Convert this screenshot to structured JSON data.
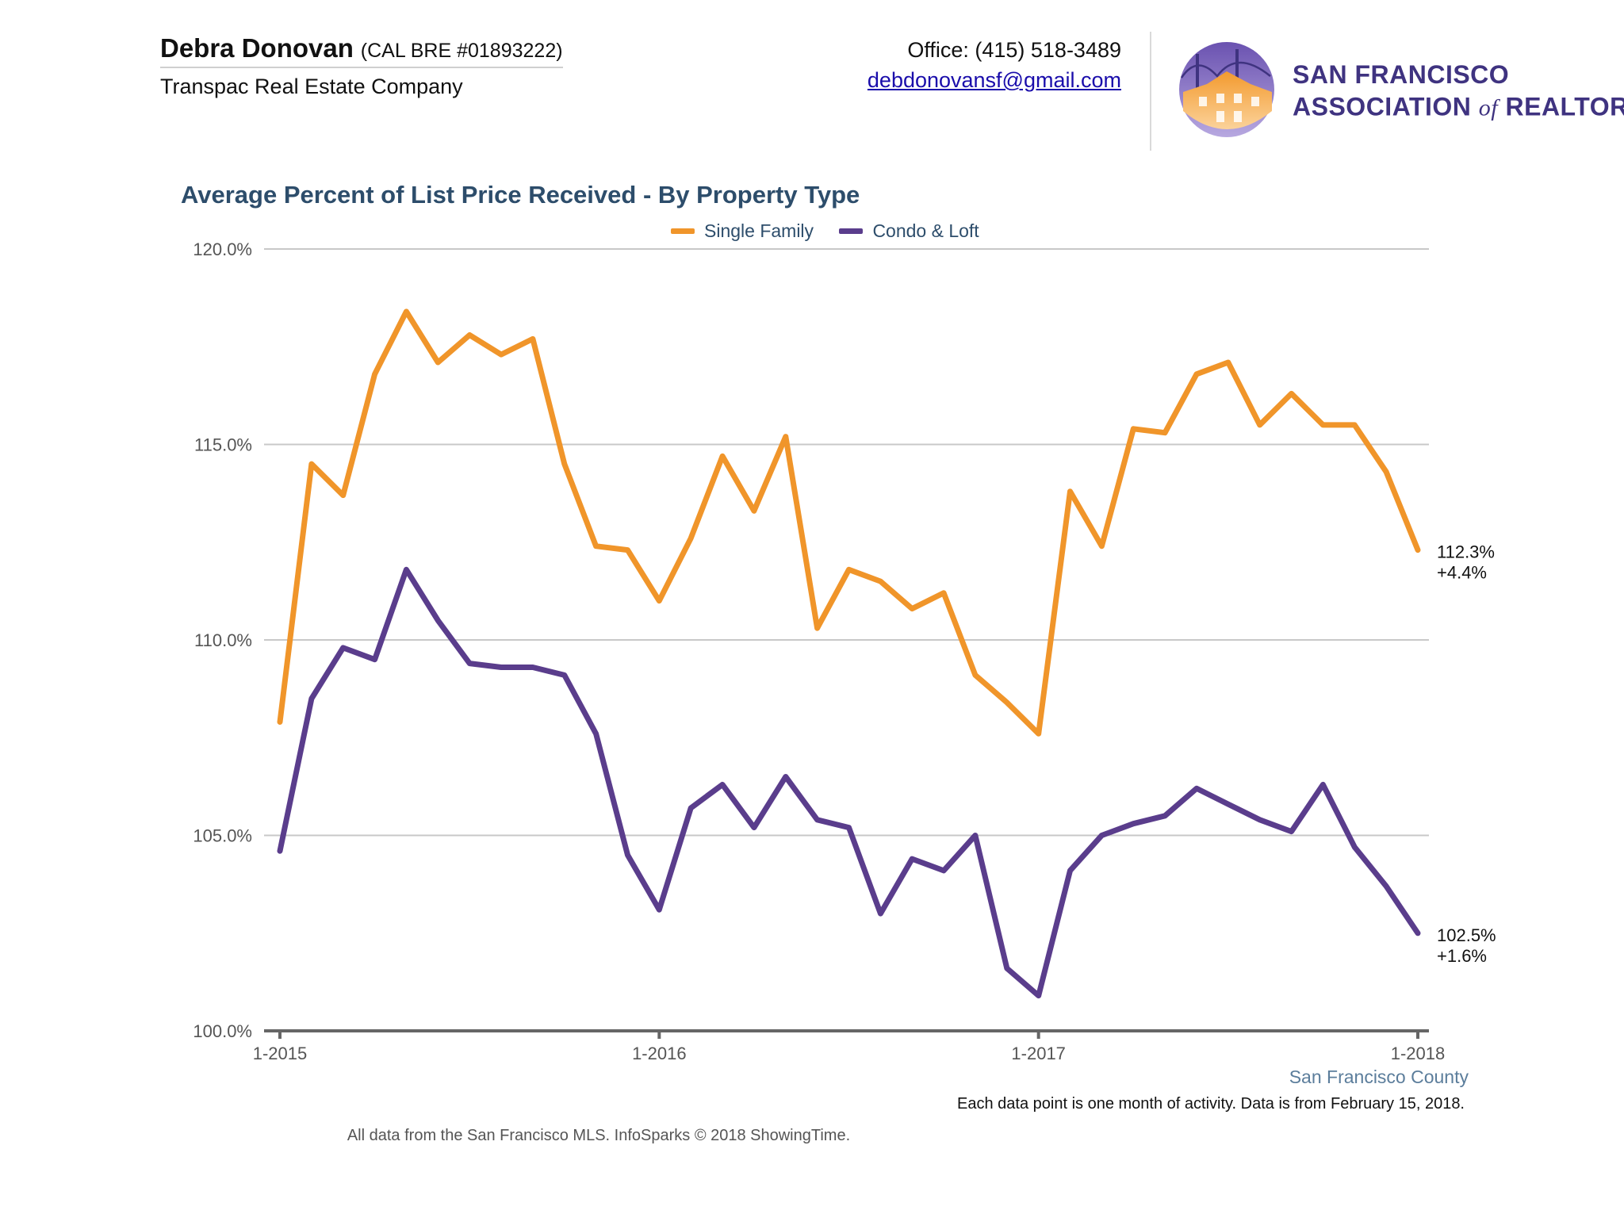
{
  "header": {
    "agent_name": "Debra Donovan",
    "agent_license": "(CAL BRE #01893222)",
    "company": "Transpac Real Estate Company",
    "office_phone": "Office: (415) 518-3489",
    "email": "debdonovansf@gmail.com",
    "logo_line1": "San Francisco",
    "logo_line2_a": "Association",
    "logo_line2_of": "of",
    "logo_line2_b": "Realtors",
    "logo_registered": "®"
  },
  "legend": {
    "series1": "Single Family",
    "series2": "Condo & Loft"
  },
  "footer": {
    "region": "San Francisco County",
    "note": "Each data point is one month of activity. Data is from February 15, 2018.",
    "source": "All data from the San Francisco MLS. InfoSparks © 2018 ShowingTime."
  },
  "colors": {
    "single_family": "#f0952a",
    "condo_loft": "#5a3d8c",
    "title": "#2d4d6b",
    "grid": "#c8c8c8",
    "axis": "#666666"
  },
  "chart_data": {
    "type": "line",
    "title": "Average Percent of List Price Received - By Property Type",
    "xlabel": "",
    "ylabel": "",
    "ylim": [
      100,
      120
    ],
    "y_ticks": [
      "100.0%",
      "105.0%",
      "110.0%",
      "115.0%",
      "120.0%"
    ],
    "y_tick_values": [
      100,
      105,
      110,
      115,
      120
    ],
    "x_ticks": [
      "1-2015",
      "1-2016",
      "1-2017",
      "1-2018"
    ],
    "x_tick_indices": [
      0,
      12,
      24,
      36
    ],
    "x_months": [
      "1-2015",
      "2-2015",
      "3-2015",
      "4-2015",
      "5-2015",
      "6-2015",
      "7-2015",
      "8-2015",
      "9-2015",
      "10-2015",
      "11-2015",
      "12-2015",
      "1-2016",
      "2-2016",
      "3-2016",
      "4-2016",
      "5-2016",
      "6-2016",
      "7-2016",
      "8-2016",
      "9-2016",
      "10-2016",
      "11-2016",
      "12-2016",
      "1-2017",
      "2-2017",
      "3-2017",
      "4-2017",
      "5-2017",
      "6-2017",
      "7-2017",
      "8-2017",
      "9-2017",
      "10-2017",
      "11-2017",
      "12-2017",
      "1-2018"
    ],
    "grid": true,
    "legend_position": "top-center",
    "series": [
      {
        "name": "Single Family",
        "values": [
          107.9,
          114.5,
          113.7,
          116.8,
          118.4,
          117.1,
          117.8,
          117.3,
          117.7,
          114.5,
          112.4,
          112.3,
          111.0,
          112.6,
          114.7,
          113.3,
          115.2,
          110.3,
          111.8,
          111.5,
          110.8,
          111.2,
          109.1,
          108.4,
          107.6,
          113.8,
          112.4,
          115.4,
          115.3,
          116.8,
          117.1,
          115.5,
          116.3,
          115.5,
          115.5,
          114.3,
          112.3
        ],
        "end_label": "112.3%",
        "end_change": "+4.4%"
      },
      {
        "name": "Condo & Loft",
        "values": [
          104.6,
          108.5,
          109.8,
          109.5,
          111.8,
          110.5,
          109.4,
          109.3,
          109.3,
          109.1,
          107.6,
          104.5,
          103.1,
          105.7,
          106.3,
          105.2,
          106.5,
          105.4,
          105.2,
          103.0,
          104.4,
          104.1,
          105.0,
          101.6,
          100.9,
          104.1,
          105.0,
          105.3,
          105.5,
          106.2,
          105.8,
          105.4,
          105.1,
          106.3,
          104.7,
          103.7,
          102.5
        ],
        "end_label": "102.5%",
        "end_change": "+1.6%"
      }
    ]
  }
}
